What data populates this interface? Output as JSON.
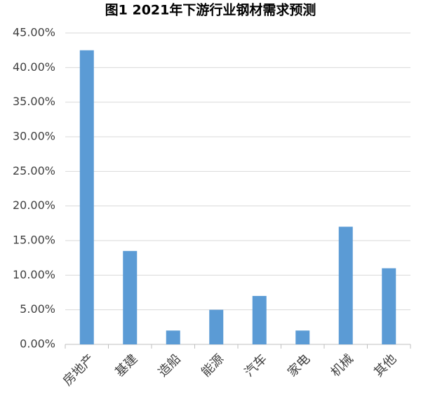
{
  "chart_data": {
    "type": "bar",
    "title": "图1 2021年下游行业钢材需求预测",
    "categories": [
      "房地产",
      "基建",
      "造船",
      "能源",
      "汽车",
      "家电",
      "机械",
      "其他"
    ],
    "values": [
      42.5,
      13.5,
      2,
      5,
      7,
      2,
      17,
      11
    ],
    "color": "#5b9bd5",
    "ylim": [
      0,
      45
    ],
    "yticks": [
      {
        "value": 0,
        "label": "0.00%"
      },
      {
        "value": 5,
        "label": "5.00%"
      },
      {
        "value": 10,
        "label": "10.00%"
      },
      {
        "value": 15,
        "label": "15.00%"
      },
      {
        "value": 20,
        "label": "20.00%"
      },
      {
        "value": 25,
        "label": "25.00%"
      },
      {
        "value": 30,
        "label": "30.00%"
      },
      {
        "value": 35,
        "label": "35.00%"
      },
      {
        "value": 40,
        "label": "40.00%"
      },
      {
        "value": 45,
        "label": "45.00%"
      }
    ],
    "grid": true
  }
}
